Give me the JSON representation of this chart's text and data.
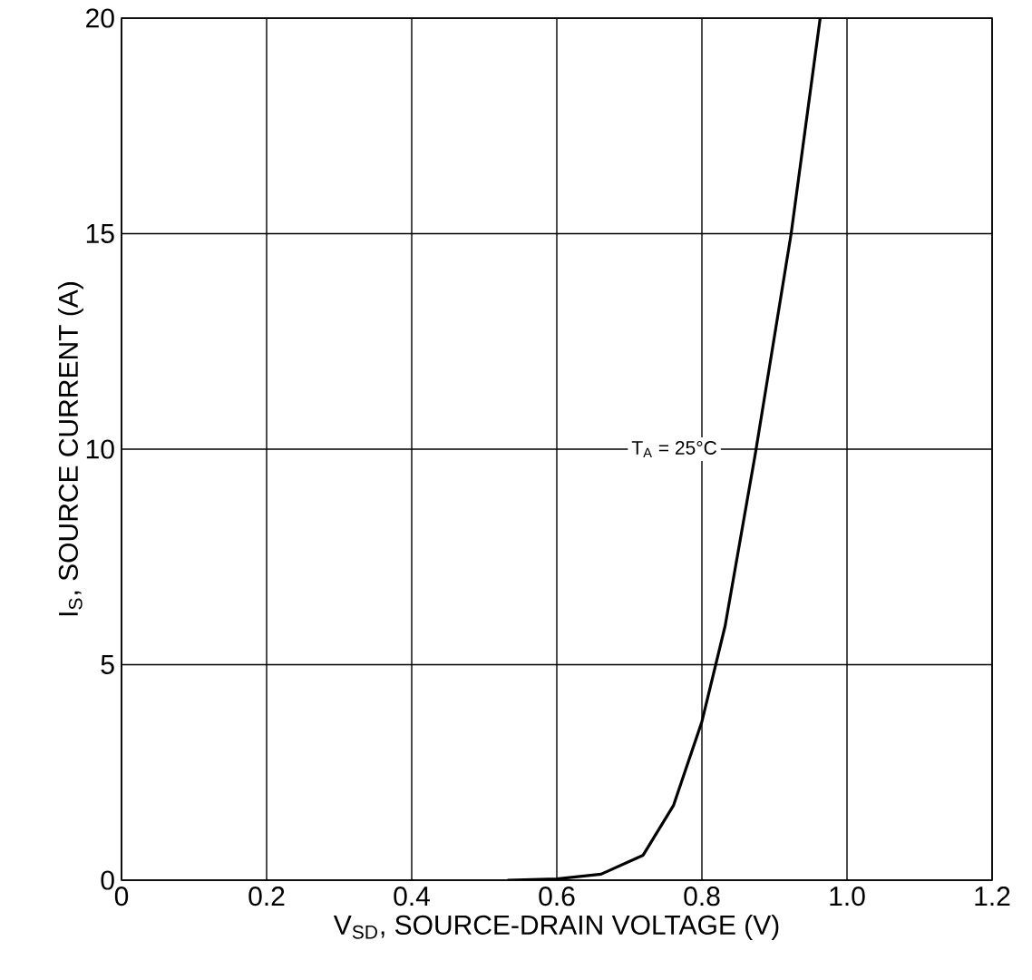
{
  "chart_data": {
    "type": "line",
    "xlabel": "V$_{SD}$, SOURCE-DRAIN VOLTAGE (V)",
    "ylabel": "I$_{S}$, SOURCE CURRENT (A)",
    "annotations": [
      "T$_{A}$ = 25°C"
    ],
    "series": [
      {
        "color": "#000000",
        "x": [
          0.532,
          0.6,
          0.661,
          0.719,
          0.761,
          0.8,
          0.832,
          0.874,
          0.923,
          0.963
        ],
        "values": [
          0,
          0.03,
          0.14,
          0.58,
          1.74,
          3.68,
          5.9,
          9.93,
          15,
          20
        ]
      }
    ],
    "xlim": [
      0,
      1.2
    ],
    "ylim": [
      0,
      20
    ],
    "xticks": [
      0,
      0.2,
      0.4,
      0.6,
      0.8,
      {
        "value": 1,
        "label": "1.0"
      },
      1.2
    ],
    "yticks": [
      0,
      5,
      10,
      15,
      20
    ],
    "grid": true,
    "legend": false,
    "marker": "none",
    "line_style": "solid"
  }
}
